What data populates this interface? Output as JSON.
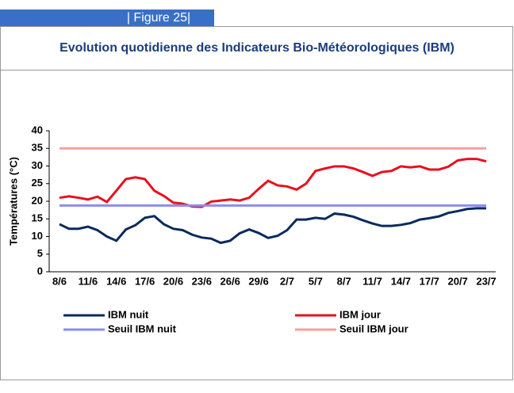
{
  "figure_label": "| Figure 25|",
  "chart_data": {
    "type": "line",
    "title": "Evolution quotidienne des Indicateurs Bio-Météorologiques (IBM)",
    "y_label": "Températures (°C)",
    "categories": [
      "8/6",
      null,
      null,
      "11/6",
      null,
      null,
      "14/6",
      null,
      null,
      "17/6",
      null,
      null,
      "20/6",
      null,
      null,
      "23/6",
      null,
      null,
      "26/6",
      null,
      null,
      "29/6",
      null,
      null,
      "2/7",
      null,
      null,
      "5/7",
      null,
      null,
      "8/7",
      null,
      null,
      "11/7",
      null,
      null,
      "14/7",
      null,
      null,
      "17/7",
      null,
      null,
      "20/7",
      null,
      null,
      "23/7"
    ],
    "series": [
      {
        "name": "IBM nuit",
        "color": "#0a2a5c",
        "values": [
          13.5,
          12.2,
          12.2,
          12.8,
          11.8,
          10,
          8.8,
          12,
          13.2,
          15.3,
          15.8,
          13.5,
          12.2,
          11.8,
          10.5,
          9.7,
          9.4,
          8.2,
          8.8,
          10.9,
          12,
          11,
          9.6,
          10.2,
          11.8,
          14.8,
          14.8,
          15.3,
          15,
          16.5,
          16.2,
          15.6,
          14.6,
          13.7,
          13,
          13,
          13.3,
          13.8,
          14.8,
          15.2,
          15.7,
          16.7,
          17.2,
          17.8,
          18,
          18
        ]
      },
      {
        "name": "IBM jour",
        "color": "#e8101e",
        "values": [
          21,
          21.4,
          21,
          20.5,
          21.3,
          19.8,
          23,
          26.3,
          26.8,
          26.3,
          23,
          21.5,
          19.6,
          19.3,
          18.5,
          18.4,
          19.9,
          20.2,
          20.5,
          20.2,
          21,
          23.5,
          25.8,
          24.5,
          24.2,
          23.3,
          25,
          28.6,
          29.3,
          29.9,
          29.9,
          29.3,
          28.3,
          27.2,
          28.3,
          28.6,
          29.9,
          29.6,
          29.9,
          29,
          29,
          29.8,
          31.6,
          32,
          32,
          31.3
        ]
      },
      {
        "name": "Seuil IBM nuit",
        "color": "#8c8cf0",
        "values": [
          18.8,
          18.8,
          18.8,
          18.8,
          18.8,
          18.8,
          18.8,
          18.8,
          18.8,
          18.8,
          18.8,
          18.8,
          18.8,
          18.8,
          18.8,
          18.8,
          18.8,
          18.8,
          18.8,
          18.8,
          18.8,
          18.8,
          18.8,
          18.8,
          18.8,
          18.8,
          18.8,
          18.8,
          18.8,
          18.8,
          18.8,
          18.8,
          18.8,
          18.8,
          18.8,
          18.8,
          18.8,
          18.8,
          18.8,
          18.8,
          18.8,
          18.8,
          18.8,
          18.8,
          18.8,
          18.8
        ]
      },
      {
        "name": "Seuil IBM jour",
        "color": "#f4a0a0",
        "values": [
          35,
          35,
          35,
          35,
          35,
          35,
          35,
          35,
          35,
          35,
          35,
          35,
          35,
          35,
          35,
          35,
          35,
          35,
          35,
          35,
          35,
          35,
          35,
          35,
          35,
          35,
          35,
          35,
          35,
          35,
          35,
          35,
          35,
          35,
          35,
          35,
          35,
          35,
          35,
          35,
          35,
          35,
          35,
          35,
          35,
          35
        ]
      }
    ],
    "ylim": [
      0,
      40
    ],
    "yticks": [
      0,
      5,
      10,
      15,
      20,
      25,
      30,
      35,
      40
    ],
    "grid": false
  }
}
